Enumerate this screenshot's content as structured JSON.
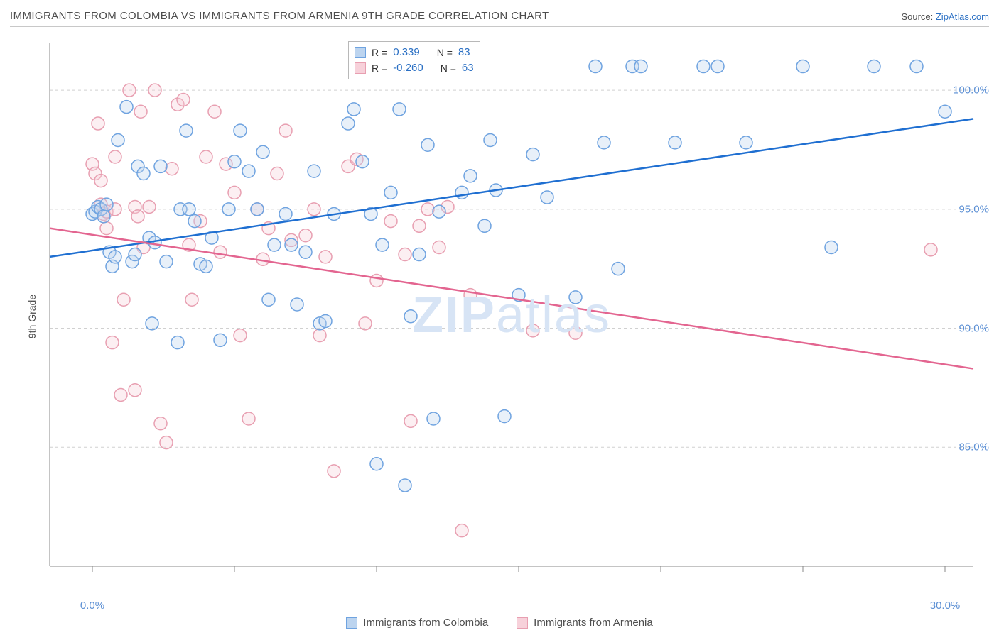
{
  "title": "IMMIGRANTS FROM COLOMBIA VS IMMIGRANTS FROM ARMENIA 9TH GRADE CORRELATION CHART",
  "source_prefix": "Source: ",
  "source_name": "ZipAtlas.com",
  "y_axis_label": "9th Grade",
  "watermark_left": "ZIP",
  "watermark_right": "atlas",
  "chart": {
    "type": "scatter",
    "background_color": "#ffffff",
    "grid_color": "#d0d0d0",
    "grid_dash": "4,4",
    "axis_line_color": "#888888",
    "marker_radius": 9,
    "marker_stroke_width": 1.5,
    "marker_fill_opacity": 0.35,
    "trend_line_width": 2.5,
    "xlim": [
      -1.5,
      31.0
    ],
    "ylim": [
      80.0,
      102.0
    ],
    "x_ticks": [
      0,
      5,
      10,
      15,
      20,
      25,
      30
    ],
    "x_tick_labels": {
      "0": "0.0%",
      "30": "30.0%"
    },
    "y_ticks": [
      85,
      90,
      95,
      100
    ],
    "y_tick_labels": {
      "85": "85.0%",
      "90": "90.0%",
      "95": "95.0%",
      "100": "100.0%"
    },
    "tick_label_color": "#5b8fd4",
    "tick_label_fontsize": 15,
    "series": [
      {
        "name": "Immigrants from Colombia",
        "color_stroke": "#6fa3e0",
        "color_fill": "#bcd4ef",
        "trend_color": "#1f6fd1",
        "trend_start_y": 93.0,
        "trend_end_y": 98.8,
        "R": "0.339",
        "N": "83",
        "points": [
          [
            0.0,
            94.8
          ],
          [
            0.1,
            94.9
          ],
          [
            0.2,
            95.1
          ],
          [
            0.3,
            95.0
          ],
          [
            0.4,
            94.7
          ],
          [
            0.5,
            95.2
          ],
          [
            0.6,
            93.2
          ],
          [
            0.7,
            92.6
          ],
          [
            0.8,
            93.0
          ],
          [
            0.9,
            97.9
          ],
          [
            1.2,
            99.3
          ],
          [
            1.4,
            92.8
          ],
          [
            1.5,
            93.1
          ],
          [
            1.6,
            96.8
          ],
          [
            1.8,
            96.5
          ],
          [
            2.0,
            93.8
          ],
          [
            2.1,
            90.2
          ],
          [
            2.2,
            93.6
          ],
          [
            2.4,
            96.8
          ],
          [
            2.6,
            92.8
          ],
          [
            3.0,
            89.4
          ],
          [
            3.1,
            95.0
          ],
          [
            3.3,
            98.3
          ],
          [
            3.4,
            95.0
          ],
          [
            3.6,
            94.5
          ],
          [
            3.8,
            92.7
          ],
          [
            4.0,
            92.6
          ],
          [
            4.2,
            93.8
          ],
          [
            4.5,
            89.5
          ],
          [
            4.8,
            95.0
          ],
          [
            5.0,
            97.0
          ],
          [
            5.2,
            98.3
          ],
          [
            5.5,
            96.6
          ],
          [
            5.8,
            95.0
          ],
          [
            6.0,
            97.4
          ],
          [
            6.2,
            91.2
          ],
          [
            6.4,
            93.5
          ],
          [
            6.8,
            94.8
          ],
          [
            7.0,
            93.5
          ],
          [
            7.2,
            91.0
          ],
          [
            7.5,
            93.2
          ],
          [
            7.8,
            96.6
          ],
          [
            8.0,
            90.2
          ],
          [
            8.2,
            90.3
          ],
          [
            8.5,
            94.8
          ],
          [
            9.0,
            98.6
          ],
          [
            9.2,
            99.2
          ],
          [
            9.5,
            97.0
          ],
          [
            9.8,
            94.8
          ],
          [
            10.0,
            84.3
          ],
          [
            10.2,
            93.5
          ],
          [
            10.5,
            95.7
          ],
          [
            10.8,
            99.2
          ],
          [
            11.0,
            83.4
          ],
          [
            11.2,
            90.5
          ],
          [
            11.5,
            93.1
          ],
          [
            11.8,
            97.7
          ],
          [
            12.0,
            86.2
          ],
          [
            12.2,
            94.9
          ],
          [
            13.0,
            95.7
          ],
          [
            13.3,
            96.4
          ],
          [
            13.8,
            94.3
          ],
          [
            14.0,
            97.9
          ],
          [
            14.2,
            95.8
          ],
          [
            14.5,
            86.3
          ],
          [
            15.0,
            91.4
          ],
          [
            15.5,
            97.3
          ],
          [
            16.0,
            95.5
          ],
          [
            17.0,
            91.3
          ],
          [
            17.7,
            101.0
          ],
          [
            18.0,
            97.8
          ],
          [
            18.5,
            92.5
          ],
          [
            19.0,
            101.0
          ],
          [
            19.3,
            101.0
          ],
          [
            20.5,
            97.8
          ],
          [
            21.5,
            101.0
          ],
          [
            22.0,
            101.0
          ],
          [
            23.0,
            97.8
          ],
          [
            25.0,
            101.0
          ],
          [
            26.0,
            93.4
          ],
          [
            27.5,
            101.0
          ],
          [
            29.0,
            101.0
          ],
          [
            30.0,
            99.1
          ]
        ]
      },
      {
        "name": "Immigrants from Armenia",
        "color_stroke": "#e89fb1",
        "color_fill": "#f7d1da",
        "trend_color": "#e36590",
        "trend_start_y": 94.2,
        "trend_end_y": 88.3,
        "R": "-0.260",
        "N": "63",
        "points": [
          [
            0.0,
            96.9
          ],
          [
            0.1,
            96.5
          ],
          [
            0.2,
            98.6
          ],
          [
            0.3,
            96.2
          ],
          [
            0.3,
            95.2
          ],
          [
            0.4,
            94.8
          ],
          [
            0.5,
            94.2
          ],
          [
            0.5,
            94.9
          ],
          [
            0.7,
            89.4
          ],
          [
            0.8,
            97.2
          ],
          [
            0.8,
            95.0
          ],
          [
            1.0,
            87.2
          ],
          [
            1.1,
            91.2
          ],
          [
            1.3,
            100.0
          ],
          [
            1.5,
            95.1
          ],
          [
            1.5,
            87.4
          ],
          [
            1.6,
            94.7
          ],
          [
            1.7,
            99.1
          ],
          [
            1.8,
            93.4
          ],
          [
            2.0,
            95.1
          ],
          [
            2.2,
            100.0
          ],
          [
            2.4,
            86.0
          ],
          [
            2.6,
            85.2
          ],
          [
            2.8,
            96.7
          ],
          [
            3.0,
            99.4
          ],
          [
            3.2,
            99.6
          ],
          [
            3.4,
            93.5
          ],
          [
            3.5,
            91.2
          ],
          [
            3.8,
            94.5
          ],
          [
            4.0,
            97.2
          ],
          [
            4.3,
            99.1
          ],
          [
            4.5,
            93.2
          ],
          [
            4.7,
            96.9
          ],
          [
            5.0,
            95.7
          ],
          [
            5.2,
            89.7
          ],
          [
            5.5,
            86.2
          ],
          [
            5.8,
            95.0
          ],
          [
            6.0,
            92.9
          ],
          [
            6.2,
            94.2
          ],
          [
            6.5,
            96.5
          ],
          [
            6.8,
            98.3
          ],
          [
            7.0,
            93.7
          ],
          [
            7.5,
            93.9
          ],
          [
            7.8,
            95.0
          ],
          [
            8.0,
            89.7
          ],
          [
            8.2,
            93.0
          ],
          [
            8.5,
            84.0
          ],
          [
            9.0,
            96.8
          ],
          [
            9.3,
            97.1
          ],
          [
            9.6,
            90.2
          ],
          [
            10.0,
            92.0
          ],
          [
            10.5,
            94.5
          ],
          [
            11.0,
            93.1
          ],
          [
            11.2,
            86.1
          ],
          [
            11.5,
            94.3
          ],
          [
            11.8,
            95.0
          ],
          [
            12.2,
            93.4
          ],
          [
            12.5,
            95.1
          ],
          [
            13.0,
            81.5
          ],
          [
            13.3,
            91.4
          ],
          [
            15.5,
            89.9
          ],
          [
            17.0,
            89.8
          ],
          [
            29.5,
            93.3
          ]
        ]
      }
    ]
  },
  "statbox": {
    "R_label": "R =",
    "N_label": "N ="
  },
  "bottom_legend": {
    "series1": "Immigrants from Colombia",
    "series2": "Immigrants from Armenia"
  }
}
